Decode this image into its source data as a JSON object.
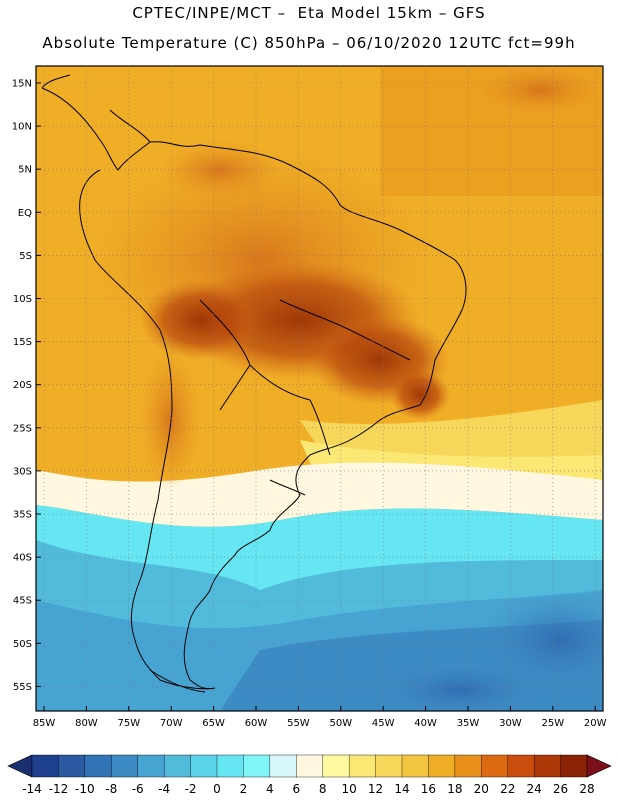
{
  "header": {
    "line1": "CPTEC/INPE/MCT –  Eta Model 15km – GFS",
    "line2": "Absolute Temperature (C) 850hPa – 06/10/2020 12UTC fct=99h"
  },
  "map": {
    "lat_labels": [
      "15N",
      "10N",
      "5N",
      "EQ",
      "5S",
      "10S",
      "15S",
      "20S",
      "25S",
      "30S",
      "35S",
      "40S",
      "45S",
      "50S",
      "55S"
    ],
    "lon_labels": [
      "85W",
      "80W",
      "75W",
      "70W",
      "65W",
      "60W",
      "55W",
      "50W",
      "45W",
      "40W",
      "35W",
      "30W",
      "25W",
      "20W"
    ]
  },
  "colorbar": {
    "labels": [
      "-14",
      "-12",
      "-10",
      "-8",
      "-6",
      "-4",
      "-2",
      "0",
      "2",
      "4",
      "6",
      "8",
      "10",
      "12",
      "14",
      "16",
      "18",
      "20",
      "22",
      "24",
      "26",
      "28"
    ],
    "colors": [
      "#1f3f8f",
      "#2b5aa3",
      "#3273b6",
      "#3d8bc4",
      "#47a3d1",
      "#52bbdc",
      "#5ad2e8",
      "#66e6f2",
      "#7ff5f8",
      "#d7f7fa",
      "#fff7e0",
      "#fffaa0",
      "#fbe774",
      "#f7d75a",
      "#f3c440",
      "#f0ad26",
      "#e8901a",
      "#dd6a10",
      "#c94d0c",
      "#ad3808",
      "#8a2206"
    ],
    "arrow_left_color": "#1a2f70",
    "arrow_right_color": "#7a0f1a"
  }
}
